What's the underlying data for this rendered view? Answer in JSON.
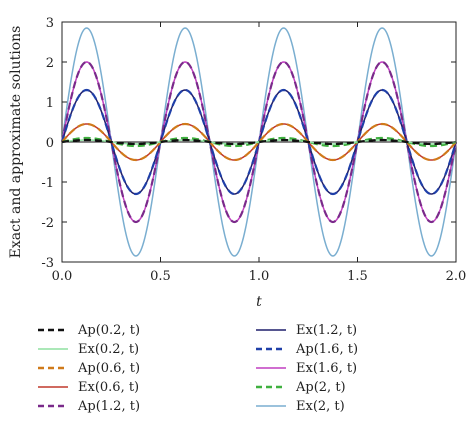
{
  "chart_data": {
    "type": "line",
    "xlabel": "t",
    "ylabel": "Exact and approximate solutions",
    "xlim": [
      0.0,
      2.0
    ],
    "ylim": [
      -3,
      3
    ],
    "x_ticks": [
      "0.0",
      "0.5",
      "1.0",
      "1.5",
      "2.0"
    ],
    "y_ticks": [
      "-3",
      "-2",
      "-1",
      "0",
      "1",
      "2",
      "3"
    ],
    "grid": false,
    "legend_placement": "bottom",
    "series_function": "A * sin(4*pi*t)",
    "t_range": [
      0.0,
      2.0
    ],
    "series": [
      {
        "name": "Ap(0.2, t)",
        "amplitude": 0.05,
        "color": "#111111",
        "dashed": true
      },
      {
        "name": "Ex(0.2, t)",
        "amplitude": 0.05,
        "color": "#8fe0a0",
        "dashed": false
      },
      {
        "name": "Ap(0.6, t)",
        "amplitude": 0.45,
        "color": "#d07a1a",
        "dashed": true
      },
      {
        "name": "Ex(0.6, t)",
        "amplitude": 0.45,
        "color": "#c0392b",
        "dashed": false
      },
      {
        "name": "Ap(1.2, t)",
        "amplitude": 2.0,
        "color": "#7a2a8a",
        "dashed": true
      },
      {
        "name": "Ex(1.2, t)",
        "amplitude": 1.3,
        "color": "#1f1f6b",
        "dashed": false
      },
      {
        "name": "Ap(1.6, t)",
        "amplitude": 1.3,
        "color": "#1f3fa8",
        "dashed": true
      },
      {
        "name": "Ex(1.6, t)",
        "amplitude": 2.0,
        "color": "#c03fc0",
        "dashed": false
      },
      {
        "name": "Ap(2, t)",
        "amplitude": 0.1,
        "color": "#3fb03f",
        "dashed": true
      },
      {
        "name": "Ex(2, t)",
        "amplitude": 2.85,
        "color": "#7aaed0",
        "dashed": false
      }
    ]
  }
}
